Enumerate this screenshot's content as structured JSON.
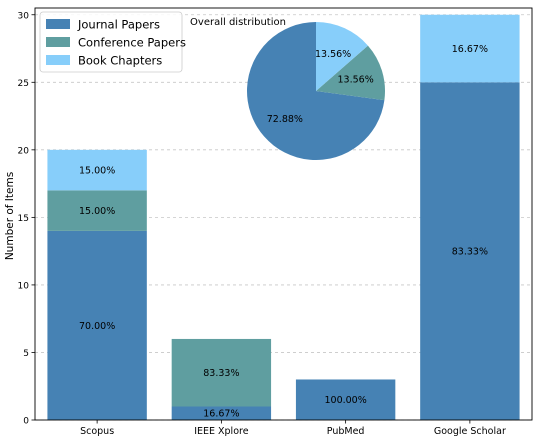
{
  "chart_data": [
    {
      "type": "bar",
      "stacked": true,
      "categories": [
        "Scopus",
        "IEEE Xplore",
        "PubMed",
        "Google Scholar"
      ],
      "series": [
        {
          "name": "Journal Papers",
          "color": "#4682B4",
          "values": [
            14,
            1,
            3,
            25
          ],
          "labels": [
            "70.00%",
            "16.67%",
            "100.00%",
            "83.33%"
          ]
        },
        {
          "name": "Conference Papers",
          "color": "#5F9EA0",
          "values": [
            3,
            5,
            0,
            0
          ],
          "labels": [
            "15.00%",
            "83.33%",
            "",
            ""
          ]
        },
        {
          "name": "Book Chapters",
          "color": "#87CEFA",
          "values": [
            3,
            0,
            0,
            5
          ],
          "labels": [
            "15.00%",
            "",
            "",
            "16.67%"
          ]
        }
      ],
      "xlabel": "",
      "ylabel": "Number of Items",
      "ylim": [
        0,
        30.5
      ],
      "yticks": [
        0,
        5,
        10,
        15,
        20,
        25,
        30
      ],
      "grid": "y-dashed",
      "legend": {
        "placement": "top-left",
        "entries": [
          "Journal Papers",
          "Conference Papers",
          "Book Chapters"
        ]
      }
    },
    {
      "type": "pie",
      "title": "Overall distribution",
      "categories": [
        "Journal Papers",
        "Conference Papers",
        "Book Chapters"
      ],
      "values": [
        72.88,
        13.56,
        13.56
      ],
      "labels": [
        "72.88%",
        "13.56%",
        "13.56%"
      ],
      "colors": [
        "#4682B4",
        "#5F9EA0",
        "#87CEFA"
      ],
      "startangle": 90
    }
  ]
}
